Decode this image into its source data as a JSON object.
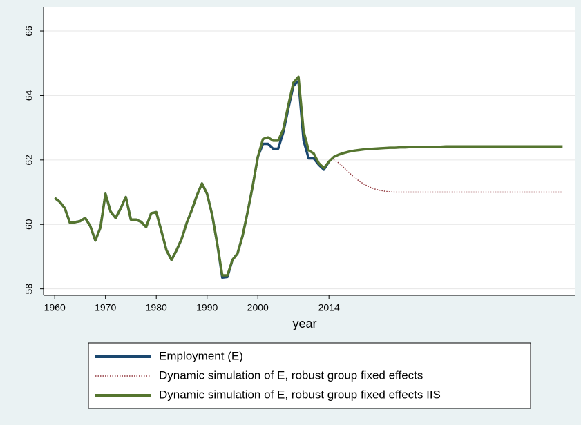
{
  "chart_data": {
    "type": "line",
    "x": [
      1960,
      1961,
      1962,
      1963,
      1964,
      1965,
      1966,
      1967,
      1968,
      1969,
      1970,
      1971,
      1972,
      1973,
      1974,
      1975,
      1976,
      1977,
      1978,
      1979,
      1980,
      1981,
      1982,
      1983,
      1984,
      1985,
      1986,
      1987,
      1988,
      1989,
      1990,
      1991,
      1992,
      1993,
      1994,
      1995,
      1996,
      1997,
      1998,
      1999,
      2000,
      2001,
      2002,
      2003,
      2004,
      2005,
      2006,
      2007,
      2008,
      2009,
      2010,
      2011,
      2012,
      2013,
      2014,
      2015,
      2016,
      2017,
      2018,
      2019,
      2020,
      2021,
      2022,
      2023,
      2024,
      2025,
      2026,
      2027,
      2028,
      2029,
      2030,
      2031,
      2032,
      2033,
      2034,
      2035,
      2036,
      2037,
      2038,
      2039,
      2040,
      2041,
      2042,
      2043,
      2044,
      2045,
      2046,
      2047,
      2048,
      2049,
      2050,
      2051,
      2052,
      2053,
      2054,
      2055,
      2056,
      2057,
      2058,
      2059,
      2060
    ],
    "x_label": "year",
    "series": [
      {
        "name": "Employment (E)",
        "color": "#1a476f",
        "style": "solid",
        "values": [
          60.82,
          60.7,
          60.5,
          60.05,
          60.07,
          60.1,
          60.2,
          59.95,
          59.5,
          59.9,
          60.95,
          60.4,
          60.2,
          60.5,
          60.85,
          60.15,
          60.15,
          60.08,
          59.92,
          60.35,
          60.38,
          59.8,
          59.2,
          58.9,
          59.2,
          59.55,
          60.05,
          60.45,
          60.9,
          61.27,
          60.95,
          60.3,
          59.4,
          58.35,
          58.37,
          58.9,
          59.1,
          59.65,
          60.4,
          61.2,
          62.1,
          62.5,
          62.5,
          62.35,
          62.35,
          62.85,
          63.6,
          64.3,
          64.45,
          62.6,
          62.05,
          62.05,
          61.85,
          61.7,
          61.95,
          null,
          null,
          null,
          null,
          null,
          null,
          null,
          null,
          null,
          null,
          null,
          null,
          null,
          null,
          null,
          null,
          null,
          null,
          null,
          null,
          null,
          null,
          null,
          null,
          null,
          null,
          null,
          null,
          null,
          null,
          null,
          null,
          null,
          null,
          null,
          null,
          null,
          null,
          null,
          null,
          null,
          null,
          null,
          null,
          null,
          null
        ]
      },
      {
        "name": "Dynamic simulation of E, robust group fixed effects",
        "color": "#90353b",
        "style": "dotted",
        "values": [
          null,
          null,
          null,
          null,
          null,
          null,
          null,
          null,
          null,
          null,
          null,
          null,
          null,
          null,
          null,
          null,
          null,
          null,
          null,
          null,
          null,
          null,
          null,
          null,
          null,
          null,
          null,
          null,
          null,
          null,
          null,
          null,
          null,
          null,
          null,
          null,
          null,
          null,
          null,
          null,
          null,
          null,
          null,
          null,
          null,
          null,
          null,
          null,
          null,
          null,
          null,
          null,
          null,
          null,
          61.95,
          62.0,
          61.9,
          61.75,
          61.6,
          61.46,
          61.34,
          61.24,
          61.16,
          61.1,
          61.06,
          61.03,
          61.01,
          61.0,
          61.0,
          61.0,
          61.0,
          61.0,
          61.0,
          61.0,
          61.0,
          61.0,
          61.0,
          61.0,
          61.0,
          61.0,
          61.0,
          61.0,
          61.0,
          61.0,
          61.0,
          61.0,
          61.0,
          61.0,
          61.0,
          61.0,
          61.0,
          61.0,
          61.0,
          61.0,
          61.0,
          61.0,
          61.0,
          61.0,
          61.0,
          61.0,
          61.0
        ]
      },
      {
        "name": "Dynamic simulation of E, robust group fixed effects IIS",
        "color": "#55752f",
        "style": "solid",
        "values": [
          60.82,
          60.7,
          60.5,
          60.05,
          60.07,
          60.1,
          60.2,
          59.95,
          59.5,
          59.9,
          60.95,
          60.4,
          60.2,
          60.5,
          60.85,
          60.15,
          60.15,
          60.08,
          59.92,
          60.35,
          60.38,
          59.8,
          59.2,
          58.9,
          59.2,
          59.55,
          60.05,
          60.45,
          60.9,
          61.27,
          60.95,
          60.3,
          59.4,
          58.42,
          58.42,
          58.9,
          59.1,
          59.65,
          60.4,
          61.2,
          62.1,
          62.65,
          62.7,
          62.6,
          62.6,
          62.95,
          63.7,
          64.4,
          64.58,
          62.9,
          62.3,
          62.2,
          61.9,
          61.75,
          61.95,
          62.1,
          62.17,
          62.22,
          62.26,
          62.29,
          62.31,
          62.33,
          62.34,
          62.35,
          62.36,
          62.37,
          62.38,
          62.38,
          62.39,
          62.39,
          62.4,
          62.4,
          62.4,
          62.41,
          62.41,
          62.41,
          62.41,
          62.42,
          62.42,
          62.42,
          62.42,
          62.42,
          62.42,
          62.42,
          62.42,
          62.42,
          62.42,
          62.42,
          62.42,
          62.42,
          62.42,
          62.42,
          62.42,
          62.42,
          62.42,
          62.42,
          62.42,
          62.42,
          62.42,
          62.42,
          62.42
        ]
      }
    ],
    "xlim": [
      1957.8,
      2062.4
    ],
    "xticks": [
      1960,
      1970,
      1980,
      1990,
      2000,
      2014
    ],
    "ylim": [
      57.8,
      66.75
    ],
    "yticks": [
      58,
      60,
      62,
      64,
      66
    ],
    "grid": true
  }
}
